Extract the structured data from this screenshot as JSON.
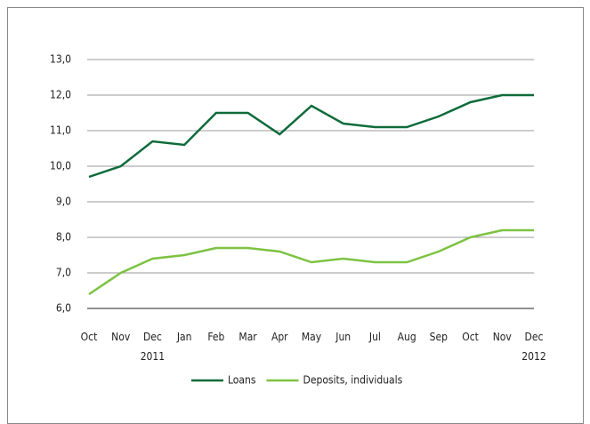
{
  "chart_data": {
    "type": "line",
    "categories": [
      "Oct",
      "Nov",
      "Dec 2011",
      "Jan",
      "Feb",
      "Mar",
      "Apr",
      "May",
      "Jun",
      "Jul",
      "Aug",
      "Sep",
      "Oct",
      "Nov",
      "Dec 2012"
    ],
    "series": [
      {
        "name": "Loans",
        "color": "#0e6b3a",
        "values": [
          9.7,
          10.0,
          10.7,
          10.6,
          11.5,
          11.5,
          10.9,
          11.7,
          11.2,
          11.1,
          11.1,
          11.4,
          11.8,
          12.0,
          12.0
        ]
      },
      {
        "name": "Deposits, individuals",
        "color": "#7dc242",
        "values": [
          6.4,
          7.0,
          7.4,
          7.5,
          7.7,
          7.7,
          7.6,
          7.3,
          7.4,
          7.3,
          7.3,
          7.6,
          8.0,
          8.2,
          8.2
        ]
      }
    ],
    "ylim": [
      6,
      13
    ],
    "yticks": [
      {
        "value": 6,
        "label": "6,0"
      },
      {
        "value": 7,
        "label": "7,0"
      },
      {
        "value": 8,
        "label": "8,0"
      },
      {
        "value": 9,
        "label": "9,0"
      },
      {
        "value": 10,
        "label": "10,0"
      },
      {
        "value": 11,
        "label": "11,0"
      },
      {
        "value": 12,
        "label": "12,0"
      },
      {
        "value": 13,
        "label": "13,0"
      }
    ],
    "grid": true,
    "legend": "bottom"
  }
}
